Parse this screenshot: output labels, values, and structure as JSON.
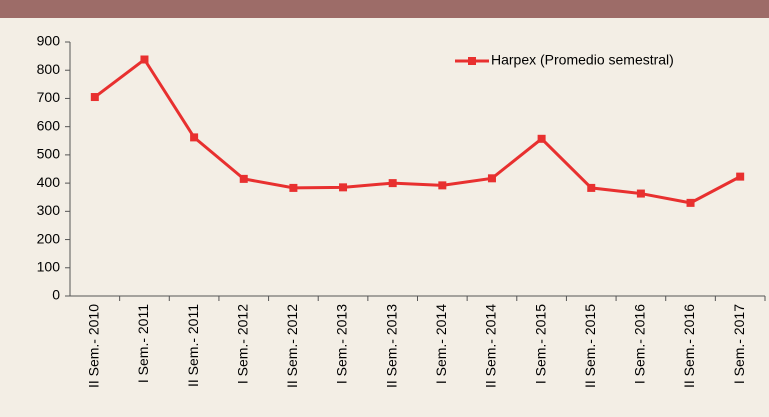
{
  "chart_data": {
    "type": "line",
    "categories": [
      "II Sem.- 2010",
      "I Sem.- 2011",
      "II Sem.- 2011",
      "I Sem.- 2012",
      "II Sem.- 2012",
      "I Sem.- 2013",
      "II Sem.- 2013",
      "I Sem.- 2014",
      "II Sem.- 2014",
      "I Sem.- 2015",
      "II Sem.- 2015",
      "I Sem.- 2016",
      "II Sem.- 2016",
      "I Sem.- 2017"
    ],
    "series": [
      {
        "name": "Harpex (Promedio semestral)",
        "color": "#e8302f",
        "values": [
          705,
          838,
          562,
          415,
          383,
          385,
          400,
          392,
          417,
          557,
          383,
          363,
          330,
          423
        ]
      }
    ],
    "ylim": [
      0,
      900
    ],
    "yticks": [
      0,
      100,
      200,
      300,
      400,
      500,
      600,
      700,
      800,
      900
    ],
    "legend": "top-right"
  }
}
